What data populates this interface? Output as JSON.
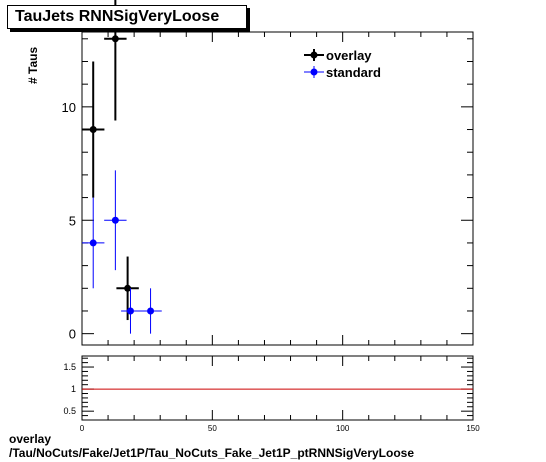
{
  "title": "TauJets RNNSigVeryLoose",
  "footer": {
    "line1": "overlay",
    "line2": "/Tau/NoCuts/Fake/Jet1P/Tau_NoCuts_Fake_Jet1P_ptRNNSigVeryLoose"
  },
  "colors": {
    "overlay": "#000000",
    "standard": "#0000ff",
    "ratio_line": "#cc0000"
  },
  "chart_data": [
    {
      "type": "scatter",
      "ylabel": "# Taus",
      "xlim": [
        0,
        150
      ],
      "ylim": [
        -0.5,
        13.3
      ],
      "yticks": [
        0,
        5,
        10
      ],
      "legend": {
        "placement": "top-right",
        "entries": [
          "overlay",
          "standard"
        ]
      },
      "series": [
        {
          "name": "overlay",
          "color": "#000000",
          "points": [
            {
              "x": 4.3,
              "xerr": 4.3,
              "y": 9,
              "yerr_low": 3,
              "yerr_high": 3
            },
            {
              "x": 12.8,
              "xerr": 4.3,
              "y": 13,
              "yerr_low": 3.6,
              "yerr_high": 3.6
            },
            {
              "x": 17.5,
              "xerr": 4.3,
              "y": 2,
              "yerr_low": 1.4,
              "yerr_high": 1.4
            }
          ]
        },
        {
          "name": "standard",
          "color": "#0000ff",
          "points": [
            {
              "x": 4.3,
              "xerr": 4.3,
              "y": 4,
              "yerr_low": 2,
              "yerr_high": 2
            },
            {
              "x": 12.8,
              "xerr": 4.3,
              "y": 5,
              "yerr_low": 2.2,
              "yerr_high": 2.2
            },
            {
              "x": 18.6,
              "xerr": 3.6,
              "y": 1,
              "yerr_low": 1,
              "yerr_high": 1
            },
            {
              "x": 26.3,
              "xerr": 4.3,
              "y": 1,
              "yerr_low": 1,
              "yerr_high": 1
            }
          ]
        }
      ]
    },
    {
      "type": "line",
      "xlim": [
        0,
        150
      ],
      "ylim": [
        0.3,
        1.75
      ],
      "yticks": [
        0.5,
        1,
        1.5
      ],
      "ytick_labels": [
        "0.5",
        "1",
        "1.5"
      ],
      "xticks": [
        0,
        50,
        100,
        150
      ],
      "xtick_labels": [
        "0",
        "50",
        "100",
        "150"
      ],
      "reference_line": 1
    }
  ]
}
